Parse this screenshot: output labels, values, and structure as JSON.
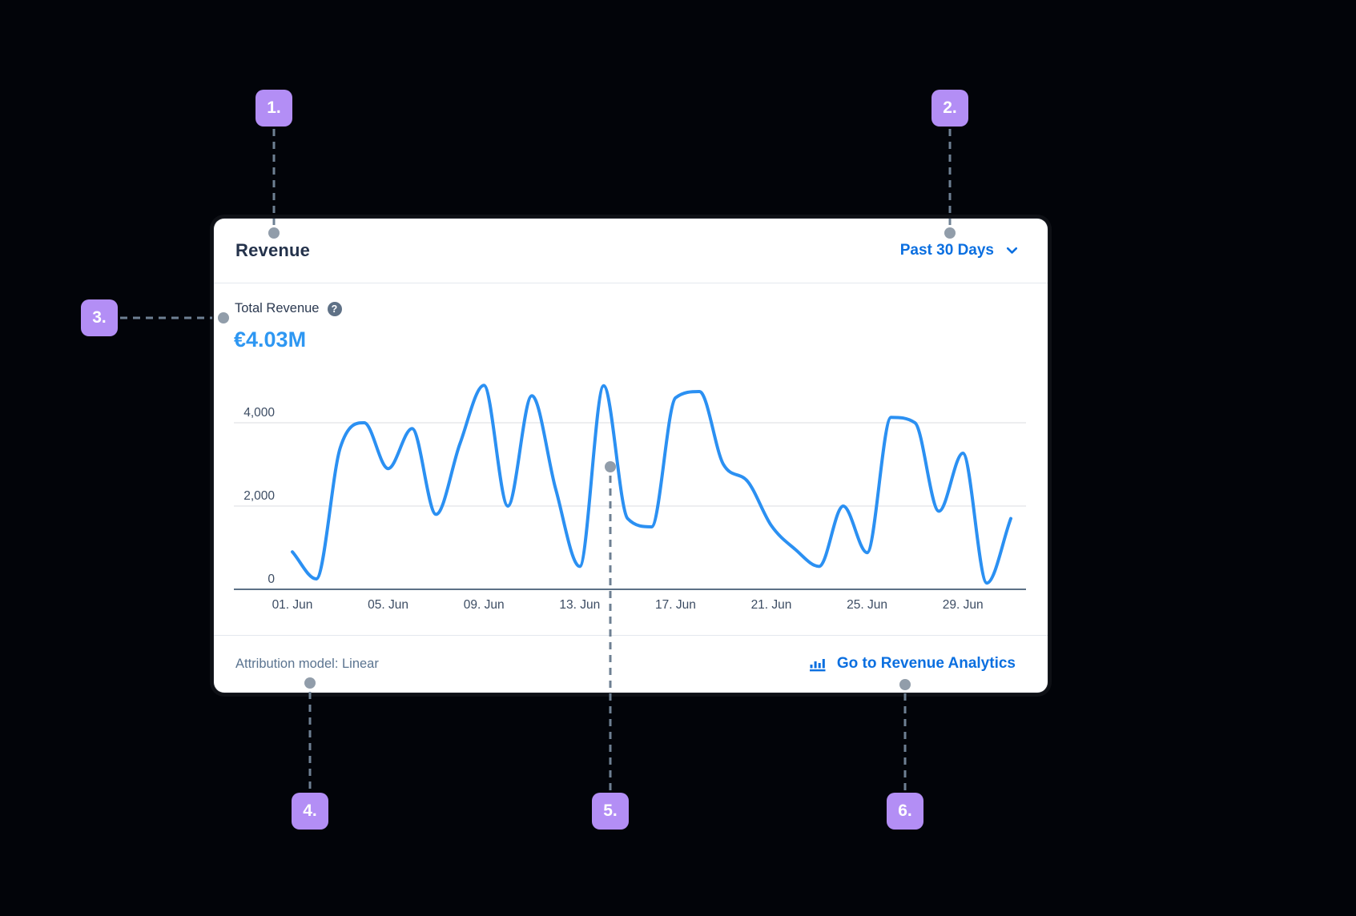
{
  "colors": {
    "background": "#020409",
    "card_background": "#ffffff",
    "accent_link_blue": "#0b6fe0",
    "kpi_value_blue": "#2e97f2",
    "chart_line_blue": "#2b90f2",
    "badge_purple": "#b38ef5",
    "connector_gray": "#6e8093",
    "dot_gray": "#919daa",
    "gridline_gray": "#e7e9ec",
    "axis_gray": "#5c7186",
    "title_navy": "#24324b",
    "muted_slate": "#5b7490"
  },
  "card": {
    "header": {
      "title": "Revenue",
      "range_label": "Past 30 Days",
      "range_chevron_icon": "chevron-down"
    },
    "kpi": {
      "label": "Total Revenue",
      "help_icon": "question-mark",
      "value": "€4.03M"
    },
    "chart_data": {
      "type": "line",
      "title": "",
      "series": [
        {
          "name": "Total Revenue",
          "values": [
            900,
            250,
            3400,
            4000,
            2900,
            3860,
            1800,
            3500,
            4900,
            2000,
            4650,
            2400,
            550,
            4890,
            1700,
            1500,
            4600,
            4750,
            3000,
            2600,
            1530,
            960,
            550,
            2000,
            880,
            4130,
            4000,
            1875,
            3270,
            150,
            1700
          ]
        }
      ],
      "x_note": "daily points starting 01. Jun, one per day, 31 points",
      "x_tick_labels": [
        "01. Jun",
        "05. Jun",
        "09. Jun",
        "13. Jun",
        "17. Jun",
        "21. Jun",
        "25. Jun",
        "29. Jun"
      ],
      "x_tick_day_step": 4,
      "y_ticks": [
        {
          "value": 0,
          "label": "0"
        },
        {
          "value": 2000,
          "label": "2,000"
        },
        {
          "value": 4000,
          "label": "4,000"
        }
      ],
      "ylim": [
        0,
        5000
      ],
      "grid": "horizontal only",
      "legend": "none"
    },
    "footer": {
      "attribution": "Attribution model: Linear",
      "link_icon": "bar-chart",
      "link_label": "Go to Revenue Analytics"
    }
  },
  "annotations": {
    "badges": [
      {
        "label": "1."
      },
      {
        "label": "2."
      },
      {
        "label": "3."
      },
      {
        "label": "4."
      },
      {
        "label": "5."
      },
      {
        "label": "6."
      }
    ]
  }
}
